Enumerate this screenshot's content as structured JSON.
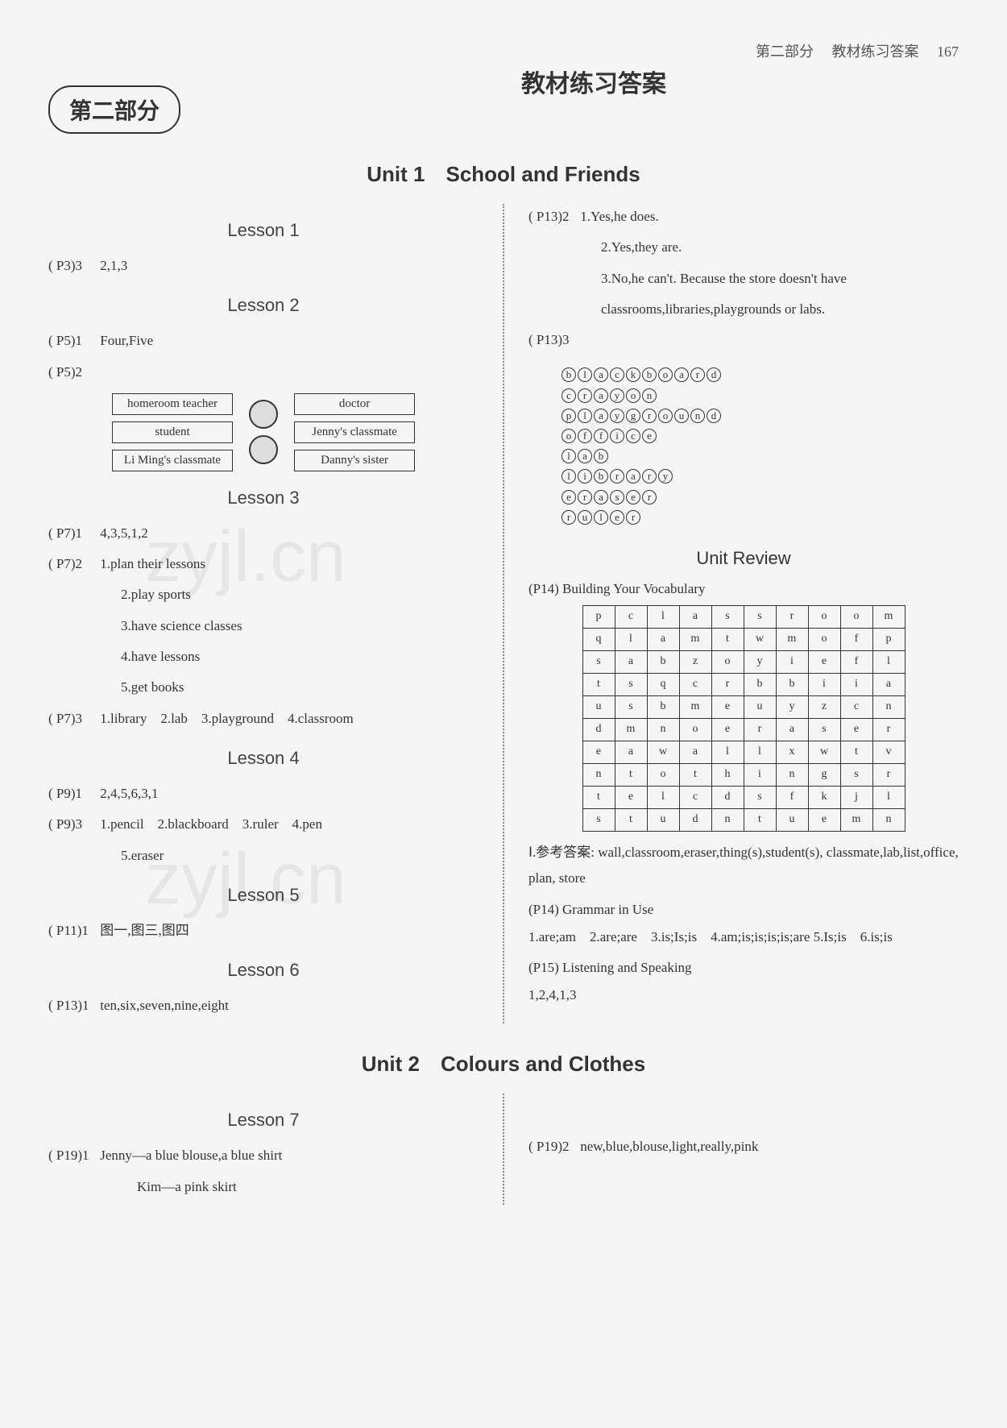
{
  "header": {
    "section_label": "第二部分",
    "section_name": "教材练习答案",
    "page_no": "167"
  },
  "badge": "第二部分",
  "main_title": "教材练习答案",
  "unit1_title": "Unit 1　School and Friends",
  "unit2_title": "Unit 2　Colours and Clothes",
  "lessons": {
    "lesson1": {
      "title": "Lesson 1",
      "items": [
        {
          "ref": "( P3)3",
          "text": "2,1,3"
        }
      ]
    },
    "lesson2": {
      "title": "Lesson 2",
      "items": [
        {
          "ref": "( P5)1",
          "text": "Four,Five"
        },
        {
          "ref": "( P5)2",
          "text": ""
        }
      ],
      "match_left": [
        "homeroom teacher",
        "student",
        "Li Ming's classmate"
      ],
      "match_right": [
        "doctor",
        "Jenny's classmate",
        "Danny's sister"
      ]
    },
    "lesson3": {
      "title": "Lesson 3",
      "items": [
        {
          "ref": "( P7)1",
          "text": "4,3,5,1,2"
        },
        {
          "ref": "( P7)2",
          "text": "1.plan their lessons"
        }
      ],
      "sub": [
        "2.play sports",
        "3.have science classes",
        "4.have lessons",
        "5.get books"
      ],
      "item3": {
        "ref": "( P7)3",
        "text": "1.library　2.lab　3.playground　4.classroom"
      }
    },
    "lesson4": {
      "title": "Lesson 4",
      "items": [
        {
          "ref": "( P9)1",
          "text": "2,4,5,6,3,1"
        },
        {
          "ref": "( P9)3",
          "text": "1.pencil　2.blackboard　3.ruler　4.pen"
        }
      ],
      "sub": [
        "5.eraser"
      ]
    },
    "lesson5": {
      "title": "Lesson 5",
      "items": [
        {
          "ref": "( P11)1",
          "text": "图一,图三,图四"
        }
      ]
    },
    "lesson6": {
      "title": "Lesson 6",
      "items": [
        {
          "ref": "( P13)1",
          "text": "ten,six,seven,nine,eight"
        }
      ]
    },
    "lesson7": {
      "title": "Lesson 7",
      "items": [
        {
          "ref": "( P19)1",
          "text": "Jenny—a blue blouse,a blue shirt"
        }
      ],
      "sub": [
        "Kim—a pink skirt"
      ]
    }
  },
  "right": {
    "p13_2": {
      "ref": "( P13)2",
      "lines": [
        "1.Yes,he does.",
        "2.Yes,they are.",
        "3.No,he can't. Because the store doesn't have",
        "classrooms,libraries,playgrounds or labs."
      ]
    },
    "p13_3": {
      "ref": "( P13)3"
    },
    "puzzle_words": [
      "blackboard",
      "crayon",
      "playground",
      "office",
      "lab",
      "library",
      "eraser",
      "ruler"
    ],
    "review_title": "Unit Review",
    "p14_heading": "(P14) Building Your Vocabulary",
    "vocab_grid": [
      [
        "p",
        "c",
        "l",
        "a",
        "s",
        "s",
        "r",
        "o",
        "o",
        "m"
      ],
      [
        "q",
        "l",
        "a",
        "m",
        "t",
        "w",
        "m",
        "o",
        "f",
        "p"
      ],
      [
        "s",
        "a",
        "b",
        "z",
        "o",
        "y",
        "i",
        "e",
        "f",
        "l"
      ],
      [
        "t",
        "s",
        "q",
        "c",
        "r",
        "b",
        "b",
        "i",
        "i",
        "a"
      ],
      [
        "u",
        "s",
        "b",
        "m",
        "e",
        "u",
        "y",
        "z",
        "c",
        "n"
      ],
      [
        "d",
        "m",
        "n",
        "o",
        "e",
        "r",
        "a",
        "s",
        "e",
        "r"
      ],
      [
        "e",
        "a",
        "w",
        "a",
        "l",
        "l",
        "x",
        "w",
        "t",
        "v"
      ],
      [
        "n",
        "t",
        "o",
        "t",
        "h",
        "i",
        "n",
        "g",
        "s",
        "r"
      ],
      [
        "t",
        "e",
        "l",
        "c",
        "d",
        "s",
        "f",
        "k",
        "j",
        "l"
      ],
      [
        "s",
        "t",
        "u",
        "d",
        "n",
        "t",
        "u",
        "e",
        "m",
        "n"
      ]
    ],
    "ref_answer_label": "Ⅰ.参考答案:",
    "ref_answer": "wall,classroom,eraser,thing(s),student(s), classmate,lab,list,office, plan, store",
    "grammar_heading": "(P14) Grammar in Use",
    "grammar": "1.are;am　2.are;are　3.is;Is;is　4.am;is;is;is;is;are 5.Is;is　6.is;is",
    "listen_heading": "(P15) Listening and Speaking",
    "listen": "1,2,4,1,3",
    "p19_2": {
      "ref": "( P19)2",
      "text": "new,blue,blouse,light,really,pink"
    }
  }
}
